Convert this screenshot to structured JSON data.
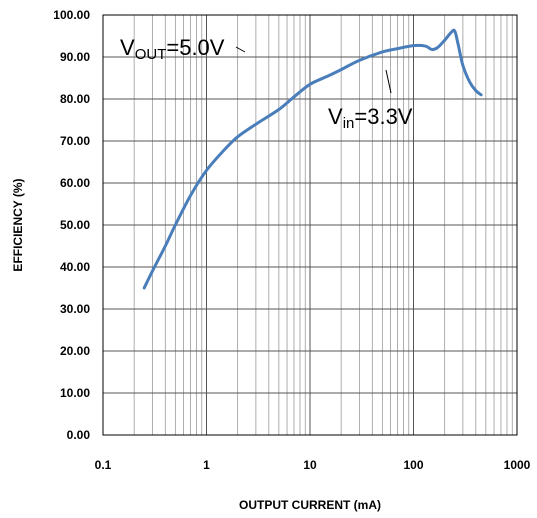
{
  "chart_data": {
    "type": "line",
    "title": "",
    "xlabel": "OUTPUT CURRENT (mA)",
    "ylabel": "EFFICIENCY (%)",
    "x_scale": "log",
    "xlim": [
      0.1,
      1000
    ],
    "ylim": [
      0,
      100
    ],
    "x_ticks": [
      "0.1",
      "1",
      "10",
      "100",
      "1000"
    ],
    "y_ticks": [
      "0.00",
      "10.00",
      "20.00",
      "30.00",
      "40.00",
      "50.00",
      "60.00",
      "70.00",
      "80.00",
      "90.00",
      "100.00"
    ],
    "grid": true,
    "series_color": "#4a7ebb",
    "series": [
      {
        "x": [
          0.25,
          0.3,
          0.4,
          0.5,
          0.7,
          1,
          1.5,
          2,
          3,
          5,
          7,
          10,
          15,
          20,
          30,
          50,
          70,
          100,
          130,
          150,
          170,
          200,
          230,
          250,
          270,
          300,
          350,
          400,
          450
        ],
        "y": [
          35,
          39,
          45,
          50,
          57,
          63,
          68,
          71,
          74,
          77.5,
          80.5,
          83.5,
          85.5,
          87,
          89.2,
          91.2,
          92,
          92.7,
          92.6,
          91.8,
          92.2,
          94,
          95.8,
          96.2,
          93,
          88,
          84,
          82,
          81
        ]
      }
    ],
    "annotations": {
      "vout_main": "V",
      "vout_sub": "OUT",
      "vout_rest": "=5.0V",
      "vin_main": "V",
      "vin_sub": "in",
      "vin_rest": "=3.3V"
    }
  }
}
